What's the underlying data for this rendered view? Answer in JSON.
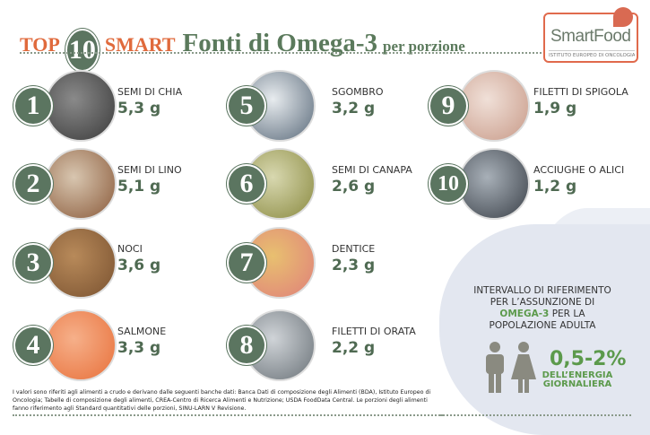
{
  "header": {
    "top": "TOP",
    "ten": "10",
    "smart": "SMART",
    "title": "Fonti di Omega-3",
    "subtitle": "per porzione"
  },
  "logo": {
    "name": "SmartFood",
    "subtitle": "ISTITUTO EUROPEO DI ONCOLOGIA"
  },
  "colors": {
    "accent_orange": "#e06a3c",
    "green": "#5b7560",
    "highlight_green": "#5c9a4c"
  },
  "items": [
    {
      "rank": "1",
      "label": "SEMI DI CHIA",
      "value": "5,3 g",
      "photo": [
        "#3a3a3a",
        "#8a8a8a"
      ]
    },
    {
      "rank": "2",
      "label": "SEMI DI LINO",
      "value": "5,1 g",
      "photo": [
        "#8a5a3a",
        "#d8c6b0"
      ]
    },
    {
      "rank": "3",
      "label": "NOCI",
      "value": "3,6 g",
      "photo": [
        "#7a5230",
        "#b88a5a"
      ]
    },
    {
      "rank": "4",
      "label": "SALMONE",
      "value": "3,3 g",
      "photo": [
        "#e8703a",
        "#f6b08a"
      ]
    },
    {
      "rank": "5",
      "label": "SGOMBRO",
      "value": "3,2 g",
      "photo": [
        "#5a6a7a",
        "#e8ecef"
      ]
    },
    {
      "rank": "6",
      "label": "SEMI DI CANAPA",
      "value": "2,6 g",
      "photo": [
        "#8a8a40",
        "#d8d8b0"
      ]
    },
    {
      "rank": "7",
      "label": "DENTICE",
      "value": "2,3 g",
      "photo": [
        "#e0807a",
        "#e8c070"
      ]
    },
    {
      "rank": "8",
      "label": "FILETTI DI ORATA",
      "value": "2,2 g",
      "photo": [
        "#6a7278",
        "#d0d4d8"
      ]
    },
    {
      "rank": "9",
      "label": "FILETTI DI SPIGOLA",
      "value": "1,9 g",
      "photo": [
        "#c89a88",
        "#f0e0d8"
      ]
    },
    {
      "rank": "10",
      "label": "ACCIUGHE O ALICI",
      "value": "1,2 g",
      "photo": [
        "#3a4048",
        "#a8b0b8"
      ]
    }
  ],
  "info": {
    "line1": "INTERVALLO DI RIFERIMENTO",
    "line2": "PER L’ASSUNZIONE DI",
    "highlight": "OMEGA-3",
    "line3": "PER LA",
    "line4": "POPOLAZIONE ADULTA",
    "percent": "0,5-2%",
    "energy1": "DELL’ENERGIA",
    "energy2": "GIORNALIERA"
  },
  "footnote": "I valori sono riferiti agli alimenti a crudo e derivano dalle seguenti banche dati: Banca Dati di composizione degli Alimenti (BDA), Istituto Europeo di Oncologia; Tabelle di composizione degli alimenti, CREA-Centro di Ricerca Alimenti e Nutrizione; USDA FoodData Central. Le porzioni degli alimenti fanno riferimento agli Standard quantitativi delle porzioni, SINU-LARN V Revisione."
}
